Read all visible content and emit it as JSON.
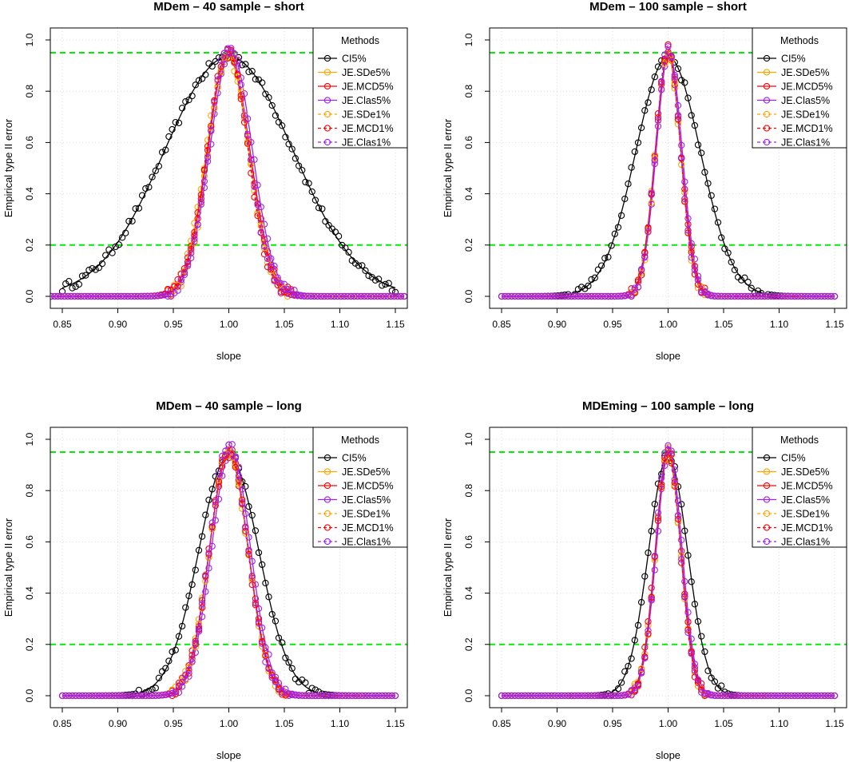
{
  "legend": {
    "title": "Methods",
    "entries": [
      {
        "label": "CI5%",
        "color": "#000000",
        "dashed": false
      },
      {
        "label": "JE.SDe5%",
        "color": "#FFA500",
        "dashed": false
      },
      {
        "label": "JE.MCD5%",
        "color": "#FF0000",
        "dashed": false
      },
      {
        "label": "JE.Clas5%",
        "color": "#A020F0",
        "dashed": false
      },
      {
        "label": "JE.SDe1%",
        "color": "#FFA500",
        "dashed": true
      },
      {
        "label": "JE.MCD1%",
        "color": "#FF0000",
        "dashed": true
      },
      {
        "label": "JE.Clas1%",
        "color": "#A020F0",
        "dashed": true
      }
    ]
  },
  "reference_line_color": "#00EE00",
  "chart_data": [
    {
      "type": "line",
      "title": "MDem – 40 sample – short",
      "xlabel": "slope",
      "ylabel": "Empirical type II error",
      "xlim": [
        0.85,
        1.15
      ],
      "ylim": [
        0,
        1
      ],
      "xticks": [
        "0.85",
        "0.90",
        "0.95",
        "1.00",
        "1.05",
        "1.10",
        "1.15"
      ],
      "yticks": [
        "0.0",
        "0.2",
        "0.4",
        "0.6",
        "0.8",
        "1.0"
      ],
      "reference_lines": [
        0.95,
        0.2
      ],
      "grid": true,
      "legend_position": "top-right",
      "x_range": [
        0.85,
        1.15
      ],
      "series": [
        {
          "name": "CI5%",
          "peak": 0.935,
          "center": 1.0,
          "width": 0.058,
          "lo": 0.85,
          "hi": 1.15
        },
        {
          "name": "JE.SDe5%",
          "peak": 0.94,
          "center": 0.999,
          "width": 0.019,
          "lo": 0.84,
          "hi": 1.16
        },
        {
          "name": "JE.MCD5%",
          "peak": 0.945,
          "center": 1.0,
          "width": 0.019,
          "lo": 0.84,
          "hi": 1.16
        },
        {
          "name": "JE.Clas5%",
          "peak": 0.955,
          "center": 1.002,
          "width": 0.019,
          "lo": 0.84,
          "hi": 1.16
        },
        {
          "name": "JE.SDe1%",
          "peak": 0.96,
          "center": 1.0,
          "width": 0.018,
          "lo": 0.84,
          "hi": 1.16
        },
        {
          "name": "JE.MCD1%",
          "peak": 0.965,
          "center": 0.999,
          "width": 0.018,
          "lo": 0.84,
          "hi": 1.16
        },
        {
          "name": "JE.Clas1%",
          "peak": 0.975,
          "center": 1.0,
          "width": 0.018,
          "lo": 0.84,
          "hi": 1.16
        }
      ]
    },
    {
      "type": "line",
      "title": "MDem – 100 sample – short",
      "xlabel": "slope",
      "ylabel": "Empirical type II error",
      "xlim": [
        0.85,
        1.15
      ],
      "ylim": [
        0,
        1
      ],
      "xticks": [
        "0.85",
        "0.90",
        "0.95",
        "1.00",
        "1.05",
        "1.10",
        "1.15"
      ],
      "yticks": [
        "0.0",
        "0.2",
        "0.4",
        "0.6",
        "0.8",
        "1.0"
      ],
      "reference_lines": [
        0.95,
        0.2
      ],
      "grid": true,
      "legend_position": "top-right",
      "series": [
        {
          "name": "CI5%",
          "peak": 0.935,
          "center": 1.0,
          "width": 0.029,
          "lo": 0.85,
          "hi": 1.15
        },
        {
          "name": "JE.SDe5%",
          "peak": 0.94,
          "center": 1.0,
          "width": 0.0115,
          "lo": 0.85,
          "hi": 1.15
        },
        {
          "name": "JE.MCD5%",
          "peak": 0.945,
          "center": 1.0,
          "width": 0.0115,
          "lo": 0.85,
          "hi": 1.15
        },
        {
          "name": "JE.Clas5%",
          "peak": 0.955,
          "center": 1.001,
          "width": 0.0115,
          "lo": 0.85,
          "hi": 1.15
        },
        {
          "name": "JE.SDe1%",
          "peak": 0.96,
          "center": 1.0,
          "width": 0.011,
          "lo": 0.88,
          "hi": 1.12
        },
        {
          "name": "JE.MCD1%",
          "peak": 0.965,
          "center": 1.0,
          "width": 0.011,
          "lo": 0.88,
          "hi": 1.12
        },
        {
          "name": "JE.Clas1%",
          "peak": 0.98,
          "center": 1.0,
          "width": 0.011,
          "lo": 0.88,
          "hi": 1.12
        }
      ]
    },
    {
      "type": "line",
      "title": "MDem – 40 sample – long",
      "xlabel": "slope",
      "ylabel": "Empirical type II error",
      "xlim": [
        0.85,
        1.15
      ],
      "ylim": [
        0,
        1
      ],
      "xticks": [
        "0.85",
        "0.90",
        "0.95",
        "1.00",
        "1.05",
        "1.10",
        "1.15"
      ],
      "yticks": [
        "0.0",
        "0.2",
        "0.4",
        "0.6",
        "0.8",
        "1.0"
      ],
      "reference_lines": [
        0.95,
        0.2
      ],
      "grid": true,
      "legend_position": "top-right",
      "series": [
        {
          "name": "CI5%",
          "peak": 0.935,
          "center": 1.0,
          "width": 0.027,
          "lo": 0.85,
          "hi": 1.15
        },
        {
          "name": "JE.SDe5%",
          "peak": 0.94,
          "center": 1.0,
          "width": 0.0175,
          "lo": 0.85,
          "hi": 1.15
        },
        {
          "name": "JE.MCD5%",
          "peak": 0.945,
          "center": 1.0,
          "width": 0.0175,
          "lo": 0.85,
          "hi": 1.15
        },
        {
          "name": "JE.Clas5%",
          "peak": 0.955,
          "center": 1.002,
          "width": 0.0175,
          "lo": 0.85,
          "hi": 1.15
        },
        {
          "name": "JE.SDe1%",
          "peak": 0.96,
          "center": 1.0,
          "width": 0.017,
          "lo": 0.88,
          "hi": 1.12
        },
        {
          "name": "JE.MCD1%",
          "peak": 0.965,
          "center": 1.0,
          "width": 0.017,
          "lo": 0.88,
          "hi": 1.12
        },
        {
          "name": "JE.Clas1%",
          "peak": 0.98,
          "center": 1.0,
          "width": 0.017,
          "lo": 0.88,
          "hi": 1.12
        }
      ]
    },
    {
      "type": "line",
      "title": "MDEming – 100 sample – long",
      "xlabel": "slope",
      "ylabel": "Empirical type II error",
      "xlim": [
        0.85,
        1.15
      ],
      "ylim": [
        0,
        1
      ],
      "xticks": [
        "0.85",
        "0.90",
        "0.95",
        "1.00",
        "1.05",
        "1.10",
        "1.15"
      ],
      "yticks": [
        "0.0",
        "0.2",
        "0.4",
        "0.6",
        "0.8",
        "1.0"
      ],
      "reference_lines": [
        0.95,
        0.2
      ],
      "grid": true,
      "legend_position": "top-right",
      "series": [
        {
          "name": "CI5%",
          "peak": 0.935,
          "center": 1.0,
          "width": 0.0175,
          "lo": 0.85,
          "hi": 1.15
        },
        {
          "name": "JE.SDe5%",
          "peak": 0.94,
          "center": 1.0,
          "width": 0.0115,
          "lo": 0.85,
          "hi": 1.15
        },
        {
          "name": "JE.MCD5%",
          "peak": 0.945,
          "center": 1.0,
          "width": 0.0115,
          "lo": 0.85,
          "hi": 1.15
        },
        {
          "name": "JE.Clas5%",
          "peak": 0.955,
          "center": 1.001,
          "width": 0.0115,
          "lo": 0.85,
          "hi": 1.15
        },
        {
          "name": "JE.SDe1%",
          "peak": 0.96,
          "center": 1.0,
          "width": 0.011,
          "lo": 0.91,
          "hi": 1.09
        },
        {
          "name": "JE.MCD1%",
          "peak": 0.965,
          "center": 1.0,
          "width": 0.011,
          "lo": 0.91,
          "hi": 1.09
        },
        {
          "name": "JE.Clas1%",
          "peak": 0.98,
          "center": 1.0,
          "width": 0.011,
          "lo": 0.91,
          "hi": 1.09
        }
      ]
    }
  ]
}
